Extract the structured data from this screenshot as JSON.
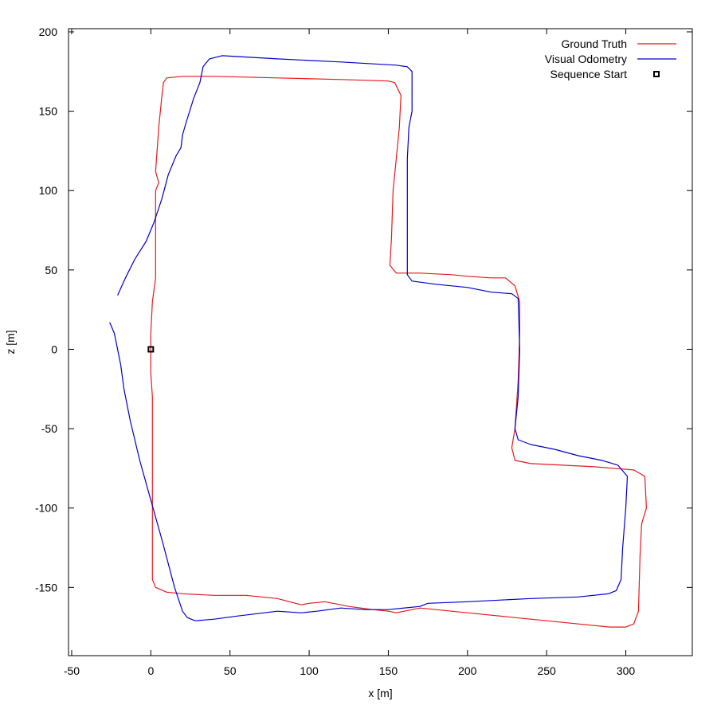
{
  "chart_data": {
    "type": "line",
    "xlabel": "x [m]",
    "ylabel": "z [m]",
    "xlim": [
      -52,
      342
    ],
    "ylim": [
      -193,
      202
    ],
    "xticks": [
      -50,
      0,
      50,
      100,
      150,
      200,
      250,
      300
    ],
    "yticks": [
      -150,
      -100,
      -50,
      0,
      50,
      100,
      150,
      200
    ],
    "grid": false,
    "legend_position": "top-right",
    "series": [
      {
        "name": "Ground Truth",
        "color": "#e41a1c",
        "points": [
          [
            0,
            0
          ],
          [
            0,
            10
          ],
          [
            1,
            30
          ],
          [
            3,
            45
          ],
          [
            3,
            80
          ],
          [
            3,
            100
          ],
          [
            5,
            105
          ],
          [
            3,
            112
          ],
          [
            5,
            140
          ],
          [
            7,
            160
          ],
          [
            8,
            168
          ],
          [
            10,
            171
          ],
          [
            20,
            172
          ],
          [
            40,
            172
          ],
          [
            80,
            171
          ],
          [
            120,
            170
          ],
          [
            150,
            169
          ],
          [
            154,
            168
          ],
          [
            158,
            160
          ],
          [
            157,
            140
          ],
          [
            155,
            120
          ],
          [
            153,
            100
          ],
          [
            152,
            70
          ],
          [
            151,
            53
          ],
          [
            155,
            48
          ],
          [
            170,
            48
          ],
          [
            190,
            47
          ],
          [
            200,
            46
          ],
          [
            215,
            45
          ],
          [
            224,
            45
          ],
          [
            230,
            40
          ],
          [
            233,
            30
          ],
          [
            233,
            10
          ],
          [
            232,
            -20
          ],
          [
            230,
            -50
          ],
          [
            228,
            -62
          ],
          [
            230,
            -70
          ],
          [
            240,
            -72
          ],
          [
            260,
            -73
          ],
          [
            280,
            -74
          ],
          [
            305,
            -76
          ],
          [
            312,
            -80
          ],
          [
            313,
            -100
          ],
          [
            310,
            -110
          ],
          [
            309,
            -130
          ],
          [
            308,
            -165
          ],
          [
            305,
            -173
          ],
          [
            300,
            -175
          ],
          [
            290,
            -175
          ],
          [
            270,
            -173
          ],
          [
            240,
            -170
          ],
          [
            200,
            -166
          ],
          [
            170,
            -163
          ],
          [
            155,
            -166
          ],
          [
            150,
            -165
          ],
          [
            140,
            -164
          ],
          [
            125,
            -162
          ],
          [
            110,
            -159
          ],
          [
            100,
            -160
          ],
          [
            95,
            -161
          ],
          [
            80,
            -157
          ],
          [
            60,
            -155
          ],
          [
            40,
            -155
          ],
          [
            20,
            -154
          ],
          [
            10,
            -153
          ],
          [
            3,
            -150
          ],
          [
            1,
            -145
          ],
          [
            1,
            -100
          ],
          [
            1,
            -50
          ],
          [
            1,
            -30
          ],
          [
            0,
            -15
          ],
          [
            0,
            0
          ]
        ]
      },
      {
        "name": "Visual Odometry",
        "color": "#0000cc",
        "points": [
          [
            -21,
            34
          ],
          [
            -16,
            45
          ],
          [
            -10,
            57
          ],
          [
            -3,
            68
          ],
          [
            2,
            80
          ],
          [
            7,
            95
          ],
          [
            11,
            110
          ],
          [
            16,
            122
          ],
          [
            19,
            127
          ],
          [
            20,
            135
          ],
          [
            22,
            142
          ],
          [
            27,
            158
          ],
          [
            31,
            168
          ],
          [
            33,
            178
          ],
          [
            37,
            183
          ],
          [
            45,
            185
          ],
          [
            80,
            183
          ],
          [
            120,
            181
          ],
          [
            155,
            179
          ],
          [
            162,
            178
          ],
          [
            165,
            175
          ],
          [
            165,
            150
          ],
          [
            163,
            140
          ],
          [
            162,
            120
          ],
          [
            162,
            100
          ],
          [
            162,
            70
          ],
          [
            162,
            47
          ],
          [
            165,
            43
          ],
          [
            180,
            41
          ],
          [
            200,
            39
          ],
          [
            215,
            36
          ],
          [
            228,
            35
          ],
          [
            232,
            32
          ],
          [
            233,
            0
          ],
          [
            232,
            -30
          ],
          [
            230,
            -50
          ],
          [
            232,
            -57
          ],
          [
            240,
            -60
          ],
          [
            255,
            -63
          ],
          [
            270,
            -67
          ],
          [
            285,
            -70
          ],
          [
            295,
            -73
          ],
          [
            301,
            -80
          ],
          [
            300,
            -100
          ],
          [
            298,
            -125
          ],
          [
            297,
            -145
          ],
          [
            294,
            -152
          ],
          [
            289,
            -154
          ],
          [
            270,
            -156
          ],
          [
            240,
            -157
          ],
          [
            200,
            -159
          ],
          [
            175,
            -160
          ],
          [
            170,
            -162
          ],
          [
            150,
            -164
          ],
          [
            135,
            -164
          ],
          [
            120,
            -163
          ],
          [
            105,
            -165
          ],
          [
            95,
            -166
          ],
          [
            80,
            -165
          ],
          [
            55,
            -168
          ],
          [
            40,
            -170
          ],
          [
            28,
            -171
          ],
          [
            23,
            -169
          ],
          [
            20,
            -165
          ],
          [
            15,
            -150
          ],
          [
            7,
            -120
          ],
          [
            0,
            -95
          ],
          [
            -7,
            -70
          ],
          [
            -13,
            -45
          ],
          [
            -17,
            -25
          ],
          [
            -19,
            -10
          ],
          [
            -21,
            0
          ],
          [
            -23,
            10
          ],
          [
            -26,
            17
          ]
        ]
      },
      {
        "name": "Sequence Start",
        "color": "#000000",
        "marker": "square",
        "points": [
          [
            0,
            0
          ]
        ]
      }
    ]
  }
}
